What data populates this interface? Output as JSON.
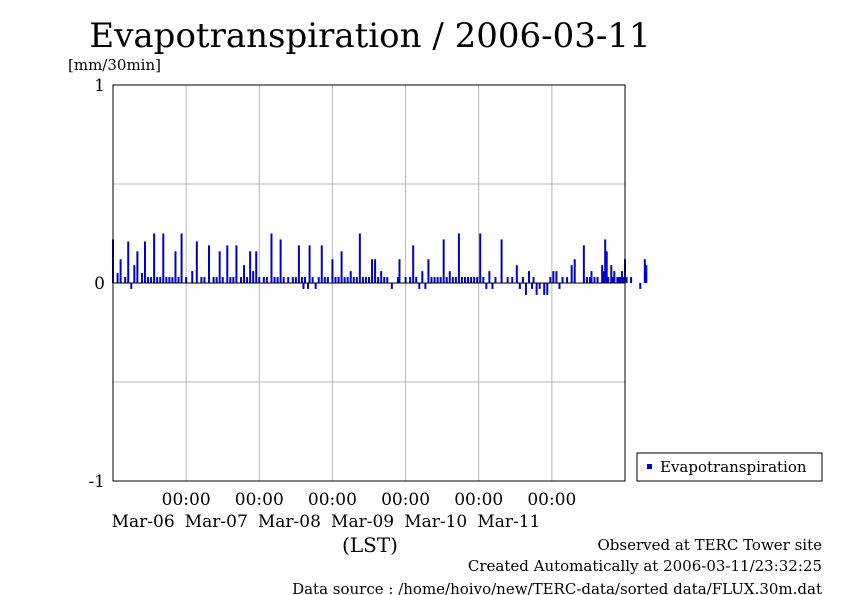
{
  "chart_data": {
    "type": "bar",
    "title": "Evapotranspiration / 2006-03-11",
    "ylabel": "[mm/30min]",
    "xlabel": "(LST)",
    "ylim": [
      -1,
      1
    ],
    "yticks": [
      "1",
      "0",
      "-1"
    ],
    "xrange": [
      "2006-03-05 00:00",
      "2006-03-12 00:00"
    ],
    "xticks": [
      {
        "time": "00:00",
        "date": "Mar-06"
      },
      {
        "time": "00:00",
        "date": "Mar-07"
      },
      {
        "time": "00:00",
        "date": "Mar-08"
      },
      {
        "time": "00:00",
        "date": "Mar-09"
      },
      {
        "time": "00:00",
        "date": "Mar-10"
      },
      {
        "time": "00:00",
        "date": "Mar-11"
      }
    ],
    "grid": true,
    "legend_position": "right",
    "series": [
      {
        "name": "Evapotranspiration",
        "color": "#0000cc",
        "points": [
          [
            "2006-03-05 00:00",
            0.22
          ],
          [
            "2006-03-05 01:30",
            0.05
          ],
          [
            "2006-03-05 02:30",
            0.12
          ],
          [
            "2006-03-05 04:00",
            0.03
          ],
          [
            "2006-03-05 05:00",
            0.21
          ],
          [
            "2006-03-05 06:00",
            -0.03
          ],
          [
            "2006-03-05 07:00",
            0.09
          ],
          [
            "2006-03-05 08:00",
            0.16
          ],
          [
            "2006-03-05 09:30",
            0.05
          ],
          [
            "2006-03-05 10:30",
            0.21
          ],
          [
            "2006-03-05 11:30",
            0.03
          ],
          [
            "2006-03-05 12:30",
            0.03
          ],
          [
            "2006-03-05 13:30",
            0.25
          ],
          [
            "2006-03-05 14:30",
            0.03
          ],
          [
            "2006-03-05 15:30",
            0.03
          ],
          [
            "2006-03-05 16:30",
            0.25
          ],
          [
            "2006-03-05 17:30",
            0.03
          ],
          [
            "2006-03-05 18:30",
            0.03
          ],
          [
            "2006-03-05 19:30",
            0.03
          ],
          [
            "2006-03-05 20:30",
            0.16
          ],
          [
            "2006-03-05 21:30",
            0.03
          ],
          [
            "2006-03-05 22:30",
            0.25
          ],
          [
            "2006-03-06 00:00",
            0.03
          ],
          [
            "2006-03-06 02:00",
            0.06
          ],
          [
            "2006-03-06 03:30",
            0.21
          ],
          [
            "2006-03-06 05:00",
            0.03
          ],
          [
            "2006-03-06 06:00",
            0.03
          ],
          [
            "2006-03-06 07:30",
            0.19
          ],
          [
            "2006-03-06 09:00",
            0.03
          ],
          [
            "2006-03-06 10:00",
            0.03
          ],
          [
            "2006-03-06 11:00",
            0.16
          ],
          [
            "2006-03-06 12:00",
            0.03
          ],
          [
            "2006-03-06 13:30",
            0.19
          ],
          [
            "2006-03-06 14:30",
            0.03
          ],
          [
            "2006-03-06 15:30",
            0.03
          ],
          [
            "2006-03-06 16:30",
            0.19
          ],
          [
            "2006-03-06 18:00",
            0.03
          ],
          [
            "2006-03-06 19:00",
            0.09
          ],
          [
            "2006-03-06 20:00",
            0.03
          ],
          [
            "2006-03-06 21:00",
            0.16
          ],
          [
            "2006-03-06 22:00",
            0.06
          ],
          [
            "2006-03-06 23:00",
            0.16
          ],
          [
            "2006-03-07 00:00",
            0.03
          ],
          [
            "2006-03-07 01:30",
            0.03
          ],
          [
            "2006-03-07 02:30",
            0.03
          ],
          [
            "2006-03-07 04:00",
            0.25
          ],
          [
            "2006-03-07 05:00",
            0.03
          ],
          [
            "2006-03-07 06:00",
            0.03
          ],
          [
            "2006-03-07 07:00",
            0.22
          ],
          [
            "2006-03-07 08:00",
            0.03
          ],
          [
            "2006-03-07 09:30",
            0.03
          ],
          [
            "2006-03-07 11:00",
            0.03
          ],
          [
            "2006-03-07 12:00",
            0.03
          ],
          [
            "2006-03-07 13:00",
            0.19
          ],
          [
            "2006-03-07 14:00",
            0.03
          ],
          [
            "2006-03-07 14:30",
            -0.03
          ],
          [
            "2006-03-07 15:00",
            0.03
          ],
          [
            "2006-03-07 16:00",
            -0.03
          ],
          [
            "2006-03-07 16:30",
            0.19
          ],
          [
            "2006-03-07 17:30",
            0.03
          ],
          [
            "2006-03-07 18:30",
            -0.03
          ],
          [
            "2006-03-07 19:30",
            0.03
          ],
          [
            "2006-03-07 20:30",
            0.19
          ],
          [
            "2006-03-07 21:30",
            0.03
          ],
          [
            "2006-03-07 22:30",
            0.03
          ],
          [
            "2006-03-08 00:00",
            0.12
          ],
          [
            "2006-03-08 01:00",
            0.03
          ],
          [
            "2006-03-08 02:00",
            0.03
          ],
          [
            "2006-03-08 03:00",
            0.16
          ],
          [
            "2006-03-08 04:00",
            0.03
          ],
          [
            "2006-03-08 05:00",
            0.03
          ],
          [
            "2006-03-08 06:00",
            0.06
          ],
          [
            "2006-03-08 07:00",
            0.03
          ],
          [
            "2006-03-08 08:00",
            0.03
          ],
          [
            "2006-03-08 09:00",
            0.25
          ],
          [
            "2006-03-08 10:00",
            0.03
          ],
          [
            "2006-03-08 11:00",
            0.03
          ],
          [
            "2006-03-08 12:00",
            0.03
          ],
          [
            "2006-03-08 13:00",
            0.12
          ],
          [
            "2006-03-08 14:00",
            0.12
          ],
          [
            "2006-03-08 15:00",
            0.03
          ],
          [
            "2006-03-08 16:00",
            0.06
          ],
          [
            "2006-03-08 17:00",
            0.03
          ],
          [
            "2006-03-08 18:00",
            0.03
          ],
          [
            "2006-03-08 19:30",
            -0.03
          ],
          [
            "2006-03-08 21:30",
            0.03
          ],
          [
            "2006-03-08 22:00",
            0.12
          ],
          [
            "2006-03-09 00:00",
            0.03
          ],
          [
            "2006-03-09 01:30",
            0.03
          ],
          [
            "2006-03-09 02:30",
            0.19
          ],
          [
            "2006-03-09 03:30",
            0.03
          ],
          [
            "2006-03-09 04:30",
            -0.03
          ],
          [
            "2006-03-09 05:30",
            0.06
          ],
          [
            "2006-03-09 06:30",
            -0.03
          ],
          [
            "2006-03-09 07:30",
            0.12
          ],
          [
            "2006-03-09 08:30",
            0.03
          ],
          [
            "2006-03-09 09:30",
            0.03
          ],
          [
            "2006-03-09 10:30",
            0.03
          ],
          [
            "2006-03-09 11:30",
            0.03
          ],
          [
            "2006-03-09 12:30",
            0.22
          ],
          [
            "2006-03-09 13:30",
            0.03
          ],
          [
            "2006-03-09 14:30",
            0.06
          ],
          [
            "2006-03-09 15:30",
            0.03
          ],
          [
            "2006-03-09 16:30",
            0.03
          ],
          [
            "2006-03-09 17:30",
            0.25
          ],
          [
            "2006-03-09 18:30",
            0.03
          ],
          [
            "2006-03-09 19:30",
            0.03
          ],
          [
            "2006-03-09 20:30",
            0.03
          ],
          [
            "2006-03-09 21:30",
            0.03
          ],
          [
            "2006-03-09 22:30",
            0.03
          ],
          [
            "2006-03-09 23:30",
            0.03
          ],
          [
            "2006-03-10 00:30",
            0.25
          ],
          [
            "2006-03-10 01:30",
            0.03
          ],
          [
            "2006-03-10 02:30",
            -0.03
          ],
          [
            "2006-03-10 03:30",
            0.06
          ],
          [
            "2006-03-10 04:30",
            -0.03
          ],
          [
            "2006-03-10 05:30",
            0.03
          ],
          [
            "2006-03-10 07:30",
            0.22
          ],
          [
            "2006-03-10 09:30",
            0.03
          ],
          [
            "2006-03-10 11:00",
            0.03
          ],
          [
            "2006-03-10 12:30",
            0.09
          ],
          [
            "2006-03-10 13:30",
            -0.03
          ],
          [
            "2006-03-10 14:30",
            0.03
          ],
          [
            "2006-03-10 15:30",
            -0.06
          ],
          [
            "2006-03-10 16:30",
            0.06
          ],
          [
            "2006-03-10 17:30",
            -0.03
          ],
          [
            "2006-03-10 18:00",
            0.03
          ],
          [
            "2006-03-10 19:00",
            -0.06
          ],
          [
            "2006-03-10 20:00",
            -0.03
          ],
          [
            "2006-03-10 21:30",
            -0.06
          ],
          [
            "2006-03-10 22:30",
            -0.06
          ],
          [
            "2006-03-10 23:30",
            0.03
          ],
          [
            "2006-03-11 00:30",
            0.06
          ],
          [
            "2006-03-11 01:30",
            0.06
          ],
          [
            "2006-03-11 02:30",
            -0.03
          ],
          [
            "2006-03-11 03:30",
            0.03
          ],
          [
            "2006-03-11 05:00",
            0.03
          ],
          [
            "2006-03-11 06:30",
            0.09
          ],
          [
            "2006-03-11 07:30",
            0.12
          ],
          [
            "2006-03-11 10:30",
            0.19
          ],
          [
            "2006-03-11 11:30",
            0.03
          ],
          [
            "2006-03-11 12:30",
            0.03
          ],
          [
            "2006-03-11 13:00",
            0.06
          ],
          [
            "2006-03-11 14:00",
            0.03
          ],
          [
            "2006-03-11 15:00",
            0.03
          ],
          [
            "2006-03-11 16:30",
            0.09
          ],
          [
            "2006-03-11 17:00",
            0.06
          ],
          [
            "2006-03-11 17:30",
            0.22
          ],
          [
            "2006-03-11 18:00",
            0.16
          ],
          [
            "2006-03-11 18:30",
            0.03
          ],
          [
            "2006-03-11 19:30",
            0.09
          ],
          [
            "2006-03-11 20:00",
            0.03
          ],
          [
            "2006-03-11 20:30",
            0.06
          ],
          [
            "2006-03-11 21:30",
            0.03
          ],
          [
            "2006-03-11 22:00",
            0.03
          ],
          [
            "2006-03-11 22:30",
            0.03
          ],
          [
            "2006-03-11 23:00",
            0.06
          ],
          [
            "2006-03-11 23:30",
            0.03
          ],
          [
            "2006-03-12 00:00",
            0.12
          ],
          [
            "2006-03-12 00:30",
            0.03
          ],
          [
            "2006-03-12 02:00",
            0.03
          ],
          [
            "2006-03-12 05:00",
            -0.03
          ],
          [
            "2006-03-12 06:30",
            0.12
          ],
          [
            "2006-03-12 07:00",
            0.09
          ]
        ]
      }
    ]
  },
  "footer": {
    "line1": "Observed at TERC Tower site",
    "line2": "Created Automatically at 2006-03-11/23:32:25",
    "line3": "Data source : /home/hoivo/new/TERC-data/sorted  data/FLUX.30m.dat"
  }
}
